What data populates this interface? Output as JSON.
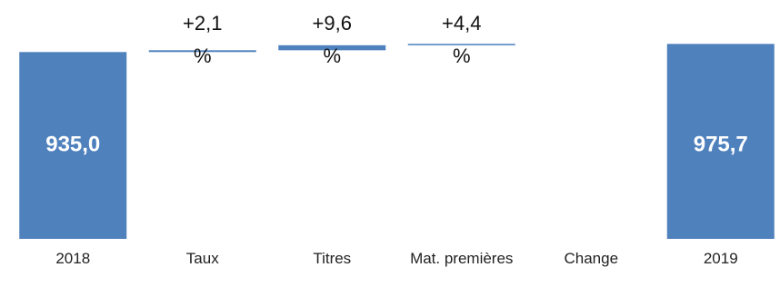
{
  "chart_data": {
    "type": "waterfall",
    "categories": [
      "2018",
      "Taux",
      "Titres",
      "Mat. premières",
      "Change",
      "2019"
    ],
    "measures": [
      "absolute",
      "relative",
      "relative",
      "relative",
      "relative",
      "total"
    ],
    "values": [
      935.0,
      9,
      25,
      7,
      null,
      975.7
    ],
    "value_labels": [
      "935,0",
      null,
      null,
      null,
      null,
      "975,7"
    ],
    "annotations": [
      null,
      "+2,1 %",
      "+9,6 %",
      "+4,4 %",
      null,
      null
    ],
    "color": "#4f81bd",
    "ylim": [
      0,
      1150
    ]
  }
}
